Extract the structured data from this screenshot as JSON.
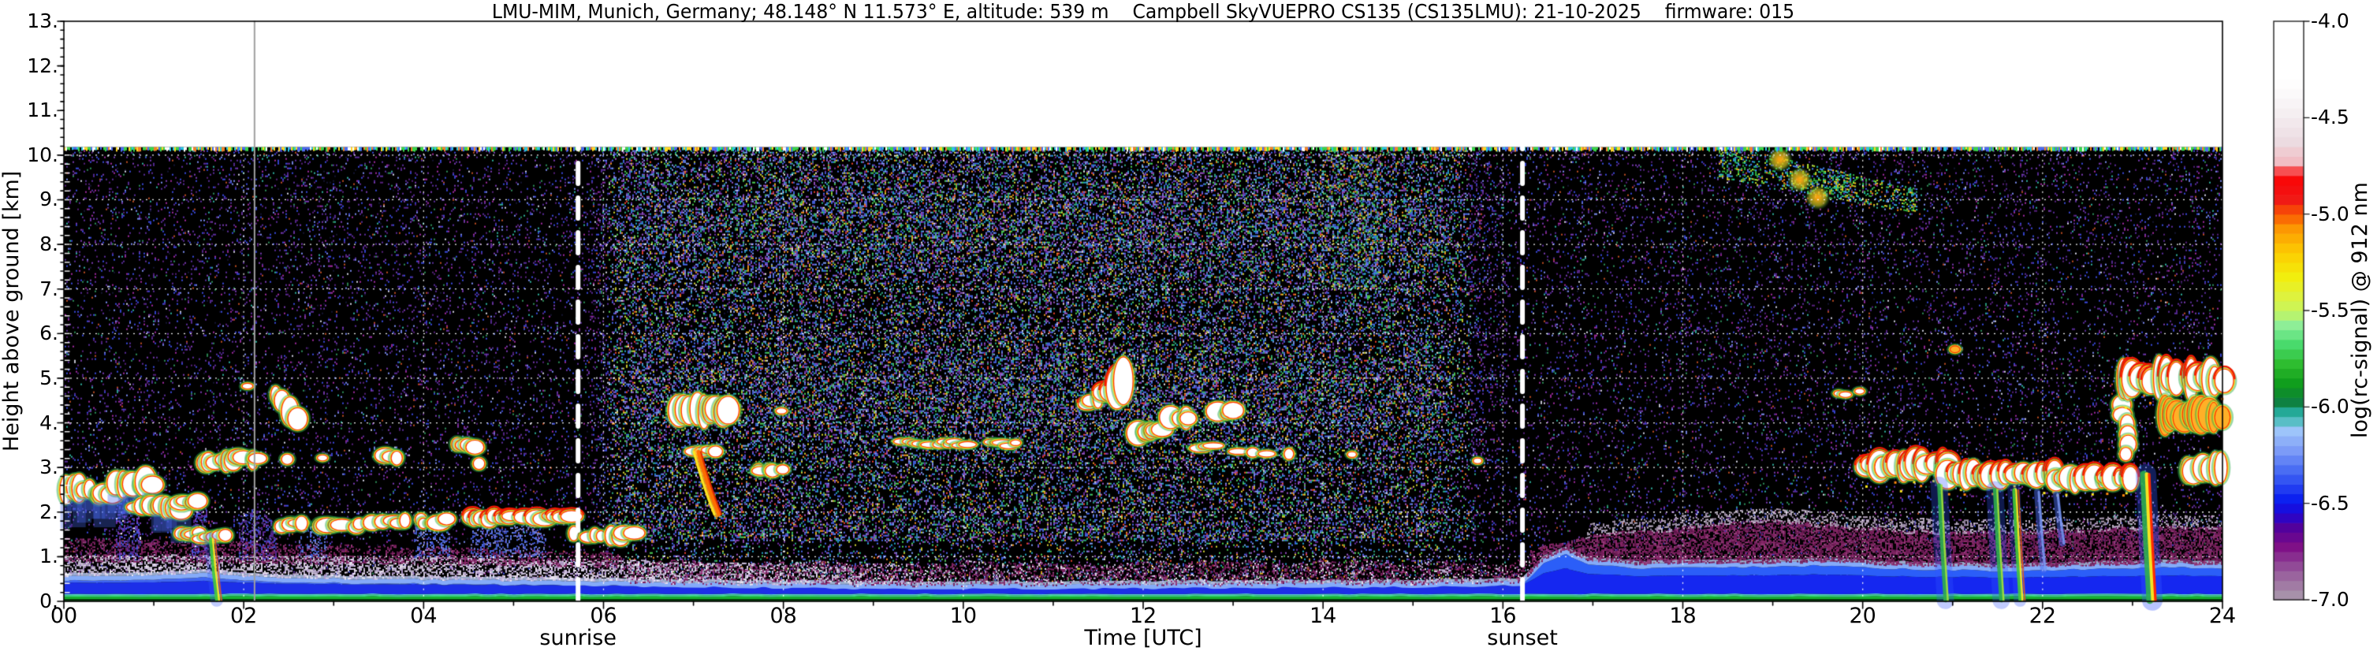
{
  "title": "LMU-MIM, Munich, Germany; 48.148° N 11.573° E, altitude: 539 m    Campbell SkyVUEPRO CS135 (CS135LMU): 21-10-2025    firmware: 015",
  "chart_data": {
    "type": "heatmap",
    "title": "LMU-MIM, Munich, Germany; 48.148° N 11.573° E, altitude: 539 m    Campbell SkyVUEPRO CS135 (CS135LMU): 21-10-2025    firmware: 015",
    "xlabel": "Time [UTC]",
    "ylabel": "Height above ground [km]",
    "colorbar_label": "log(rc-signal) @ 912 nm",
    "x_range_hours": [
      0,
      24
    ],
    "y_range_km": [
      0,
      13
    ],
    "data_top_km": 10.18,
    "value_range": [
      -7.0,
      -4.0
    ],
    "grid": {
      "style": "white-dashed",
      "x_step_hours": 2,
      "y_step_km": 1,
      "x_minor_hours": 1,
      "y_minor_km": 0.2
    },
    "x_ticks": {
      "values": [
        0,
        2,
        4,
        6,
        8,
        10,
        12,
        14,
        16,
        18,
        20,
        22,
        24
      ],
      "labels": [
        "00",
        "02",
        "04",
        "06",
        "08",
        "10",
        "12",
        "14",
        "16",
        "18",
        "20",
        "22",
        "24"
      ]
    },
    "y_ticks": {
      "values": [
        0,
        1,
        2,
        3,
        4,
        5,
        6,
        7,
        8,
        9,
        10,
        11,
        12,
        13
      ],
      "labels": [
        "0.",
        "1.",
        "2.",
        "3.",
        "4.",
        "5.",
        "6.",
        "7.",
        "8.",
        "9.",
        "10.",
        "11.",
        "12.",
        "13."
      ]
    },
    "colorbar_ticks": {
      "values": [
        -4.0,
        -4.5,
        -5.0,
        -5.5,
        -6.0,
        -6.5,
        -7.0
      ],
      "labels": [
        "-4.0",
        "-4.5",
        "-5.0",
        "-5.5",
        "-6.0",
        "-6.5",
        "-7.0"
      ]
    },
    "colormap_stops": [
      {
        "v": -7.0,
        "c": "#ab9dad"
      },
      {
        "v": -6.85,
        "c": "#96589b"
      },
      {
        "v": -6.72,
        "c": "#7e0d86"
      },
      {
        "v": -6.62,
        "c": "#50009d"
      },
      {
        "v": -6.55,
        "c": "#1c06d6"
      },
      {
        "v": -6.48,
        "c": "#0a1ef0"
      },
      {
        "v": -6.35,
        "c": "#3e62f2"
      },
      {
        "v": -6.22,
        "c": "#7e9df7"
      },
      {
        "v": -6.12,
        "c": "#9fc6fa"
      },
      {
        "v": -6.05,
        "c": "#32b9a9"
      },
      {
        "v": -6.01,
        "c": "#1ba08c"
      },
      {
        "v": -5.97,
        "c": "#0c7d37"
      },
      {
        "v": -5.88,
        "c": "#0f9c1c"
      },
      {
        "v": -5.78,
        "c": "#2dbb2d"
      },
      {
        "v": -5.68,
        "c": "#46d96a"
      },
      {
        "v": -5.58,
        "c": "#8aee9b"
      },
      {
        "v": -5.5,
        "c": "#c8f55e"
      },
      {
        "v": -5.42,
        "c": "#dff23c"
      },
      {
        "v": -5.32,
        "c": "#f2ee0c"
      },
      {
        "v": -5.2,
        "c": "#fccc02"
      },
      {
        "v": -5.08,
        "c": "#fc9b02"
      },
      {
        "v": -5.0,
        "c": "#f95703"
      },
      {
        "v": -4.92,
        "c": "#ef1616"
      },
      {
        "v": -4.8,
        "c": "#fb0404"
      },
      {
        "v": -4.74,
        "c": "#f2b8c0"
      },
      {
        "v": -4.62,
        "c": "#ecdce2"
      },
      {
        "v": -4.45,
        "c": "#f6f2f4"
      },
      {
        "v": -4.3,
        "c": "#ffffff"
      },
      {
        "v": -4.0,
        "c": "#ffffff"
      }
    ],
    "annotations": {
      "sunrise": {
        "label": "sunrise",
        "time_utc": 5.717
      },
      "sunset": {
        "label": "sunset",
        "time_utc": 16.217
      },
      "event_line": {
        "time_utc": 2.12,
        "color": "#a0a0a0"
      }
    },
    "boundary_layer": {
      "blue_top_km": [
        [
          0,
          0.44
        ],
        [
          0.8,
          0.46
        ],
        [
          1.55,
          0.52
        ],
        [
          1.8,
          0.46
        ],
        [
          2.5,
          0.4
        ],
        [
          4,
          0.37
        ],
        [
          5.5,
          0.34
        ],
        [
          7,
          0.3
        ],
        [
          9,
          0.26
        ],
        [
          11,
          0.26
        ],
        [
          13,
          0.28
        ],
        [
          15,
          0.3
        ],
        [
          16.2,
          0.33
        ],
        [
          16.45,
          0.85
        ],
        [
          16.7,
          1.03
        ],
        [
          16.95,
          0.8
        ],
        [
          17.5,
          0.72
        ],
        [
          18.5,
          0.74
        ],
        [
          19.5,
          0.78
        ],
        [
          20.5,
          0.7
        ],
        [
          21.5,
          0.66
        ],
        [
          22.5,
          0.7
        ],
        [
          23.5,
          0.74
        ],
        [
          24,
          0.72
        ]
      ],
      "lavender_haze_top_km": [
        [
          0,
          1.02
        ],
        [
          2,
          0.98
        ],
        [
          4,
          0.96
        ],
        [
          6,
          0.9
        ],
        [
          8,
          0.8
        ],
        [
          10,
          0.62
        ]
      ],
      "morning_maroon_top_km": [
        [
          0,
          1.38
        ],
        [
          1,
          1.32
        ],
        [
          2,
          1.3
        ],
        [
          3,
          1.22
        ],
        [
          4,
          1.18
        ],
        [
          5,
          1.12
        ],
        [
          6,
          1.05
        ]
      ],
      "evening_maroon_top_km": [
        [
          16.3,
          1.12
        ],
        [
          17,
          1.45
        ],
        [
          18,
          1.62
        ],
        [
          19,
          1.78
        ],
        [
          20,
          1.62
        ],
        [
          21,
          1.5
        ],
        [
          22,
          1.56
        ],
        [
          23,
          1.62
        ],
        [
          24,
          1.66
        ]
      ]
    },
    "clouds": [
      {
        "t": [
          0.03,
          0.3
        ],
        "h": [
          2.25,
          2.8
        ],
        "kind": "cumulus",
        "wash": 1
      },
      {
        "t": [
          0.33,
          0.55
        ],
        "h": [
          2.15,
          2.6
        ],
        "kind": "cumulus",
        "wash": 1
      },
      {
        "t": [
          0.58,
          0.98
        ],
        "h": [
          2.35,
          2.95
        ],
        "kind": "cumulus",
        "wash": 1
      },
      {
        "t": [
          0.8,
          1.0
        ],
        "h": [
          1.95,
          2.3
        ],
        "kind": "cumulus"
      },
      {
        "t": [
          1.02,
          1.28
        ],
        "h": [
          1.9,
          2.3
        ],
        "kind": "cumulus",
        "wash": 1
      },
      {
        "t": [
          1.3,
          1.5
        ],
        "h": [
          2.05,
          2.35
        ],
        "kind": "cumulus"
      },
      {
        "t": [
          1.33,
          1.52
        ],
        "h": [
          1.4,
          1.62
        ],
        "kind": "blob"
      },
      {
        "t": [
          1.52,
          1.8
        ],
        "h": [
          1.32,
          1.58
        ],
        "kind": "blob"
      },
      {
        "t": [
          1.57,
          1.82
        ],
        "h": [
          2.95,
          3.35
        ],
        "kind": "cumulus"
      },
      {
        "t": [
          1.86,
          2.16
        ],
        "h": [
          3.0,
          3.38
        ],
        "kind": "cumulus"
      },
      {
        "t": [
          2.02,
          2.1
        ],
        "h": [
          4.8,
          4.95
        ],
        "kind": "dot"
      },
      {
        "t": [
          2.38,
          2.58
        ],
        "h": [
          4.35,
          4.9
        ],
        "kind": "streak",
        "slope": -0.5
      },
      {
        "t": [
          2.47,
          2.6
        ],
        "h": [
          3.05,
          3.25
        ],
        "kind": "dot"
      },
      {
        "t": [
          2.86,
          2.95
        ],
        "h": [
          3.15,
          3.3
        ],
        "kind": "dot"
      },
      {
        "t": [
          2.45,
          3.45
        ],
        "h": [
          1.58,
          1.85
        ],
        "kind": "stratus",
        "gap": 0.35
      },
      {
        "t": [
          3.45,
          4.45
        ],
        "h": [
          1.65,
          1.95
        ],
        "kind": "stratus",
        "gap": 0.3
      },
      {
        "t": [
          4.45,
          5.62
        ],
        "h": [
          1.72,
          2.02
        ],
        "kind": "stratus",
        "gap": 0.15,
        "red": 1
      },
      {
        "t": [
          3.58,
          3.72
        ],
        "h": [
          3.05,
          3.45
        ],
        "kind": "blob"
      },
      {
        "t": [
          4.38,
          4.58
        ],
        "h": [
          3.35,
          3.62
        ],
        "kind": "blob"
      },
      {
        "t": [
          4.62,
          4.78
        ],
        "h": [
          2.95,
          3.18
        ],
        "kind": "dot"
      },
      {
        "t": [
          5.66,
          6.32
        ],
        "h": [
          1.3,
          1.68
        ],
        "kind": "stratus",
        "gap": 0.2
      },
      {
        "t": [
          6.12,
          6.34
        ],
        "h": [
          1.95,
          2.38
        ],
        "kind": "dots",
        "gap": 0.4
      },
      {
        "t": [
          6.82,
          7.38
        ],
        "h": [
          3.95,
          4.58
        ],
        "kind": "cumulus"
      },
      {
        "t": [
          7.02,
          7.22
        ],
        "h": [
          3.28,
          3.48
        ],
        "kind": "blob"
      },
      {
        "t": [
          7.58,
          7.97
        ],
        "h": [
          2.78,
          3.06
        ],
        "kind": "blobs",
        "gap": 0.25
      },
      {
        "t": [
          8.0,
          8.13
        ],
        "h": [
          4.2,
          4.36
        ],
        "kind": "dot"
      },
      {
        "t": [
          9.32,
          10.06
        ],
        "h": [
          3.42,
          3.66
        ],
        "kind": "line",
        "gap": 0.15
      },
      {
        "t": [
          10.31,
          10.56
        ],
        "h": [
          3.45,
          3.62
        ],
        "kind": "line"
      },
      {
        "t": [
          11.36,
          11.76
        ],
        "h": [
          4.1,
          4.78
        ],
        "kind": "comma",
        "slope": 0.45,
        "red": 1
      },
      {
        "t": [
          11.92,
          12.05
        ],
        "h": [
          3.52,
          4.02
        ],
        "kind": "blob"
      },
      {
        "t": [
          12.08,
          12.22
        ],
        "h": [
          3.55,
          4.05
        ],
        "kind": "blob"
      },
      {
        "t": [
          12.32,
          12.52
        ],
        "h": [
          3.85,
          4.32
        ],
        "kind": "blob"
      },
      {
        "t": [
          12.56,
          12.76
        ],
        "h": [
          3.3,
          3.62
        ],
        "kind": "dots",
        "gap": 0.3
      },
      {
        "t": [
          12.83,
          13.0
        ],
        "h": [
          4.05,
          4.42
        ],
        "kind": "blob"
      },
      {
        "t": [
          13.06,
          13.36
        ],
        "h": [
          3.18,
          3.52
        ],
        "kind": "dots",
        "gap": 0.45
      },
      {
        "t": [
          13.62,
          13.76
        ],
        "h": [
          3.22,
          3.42
        ],
        "kind": "dot"
      },
      {
        "t": [
          14.32,
          14.45
        ],
        "h": [
          3.2,
          3.36
        ],
        "kind": "dot"
      },
      {
        "t": [
          15.7,
          15.78
        ],
        "h": [
          3.04,
          3.16
        ],
        "kind": "dot"
      },
      {
        "t": [
          19.72,
          19.96
        ],
        "h": [
          4.56,
          4.8
        ],
        "kind": "dots",
        "gap": 0.5
      },
      {
        "t": [
          21.0,
          21.08
        ],
        "h": [
          5.6,
          5.76
        ],
        "kind": "dot",
        "orange": 1
      },
      {
        "t": [
          20.02,
          20.95
        ],
        "h": [
          2.75,
          3.35
        ],
        "kind": "stratocu",
        "red": 1
      },
      {
        "t": [
          20.95,
          22.15
        ],
        "h": [
          2.55,
          3.12
        ],
        "kind": "stratocu",
        "red": 1
      },
      {
        "t": [
          22.15,
          23.0
        ],
        "h": [
          2.52,
          3.0
        ],
        "kind": "stratocu",
        "red": 1
      },
      {
        "t": [
          22.78,
          23.1
        ],
        "h": [
          3.3,
          4.4
        ],
        "kind": "tower"
      },
      {
        "t": [
          22.88,
          24.0
        ],
        "h": [
          4.55,
          5.4
        ],
        "kind": "stratocu",
        "red": 1
      },
      {
        "t": [
          23.35,
          24.0
        ],
        "h": [
          3.72,
          4.58
        ],
        "kind": "band-orange"
      },
      {
        "t": [
          23.62,
          24.0
        ],
        "h": [
          2.62,
          3.3
        ],
        "kind": "cumulus"
      }
    ],
    "precipitation": [
      {
        "t": [
          1.6,
          1.66
        ],
        "h": [
          1.4,
          0.02
        ],
        "kind": "rain-yg"
      },
      {
        "t": [
          6.93,
          7.13
        ],
        "h": [
          3.35,
          1.95
        ],
        "kind": "virga-orange"
      },
      {
        "t": [
          20.78,
          20.92
        ],
        "h": [
          2.6,
          0.02
        ],
        "kind": "rain"
      },
      {
        "t": [
          21.42,
          21.52
        ],
        "h": [
          2.5,
          0.02
        ],
        "kind": "rain"
      },
      {
        "t": [
          21.62,
          21.74
        ],
        "h": [
          2.5,
          0.02
        ],
        "kind": "rain-yg"
      },
      {
        "t": [
          21.9,
          21.98
        ],
        "h": [
          2.45,
          0.7
        ],
        "kind": "virga"
      },
      {
        "t": [
          22.1,
          22.2
        ],
        "h": [
          2.4,
          1.3
        ],
        "kind": "virga"
      },
      {
        "t": [
          23.08,
          23.22
        ],
        "h": [
          2.85,
          0.02
        ],
        "kind": "rain-red"
      }
    ],
    "plumes": [
      {
        "t": [
          13.95,
          14.6
        ],
        "h": [
          7.0,
          10.15
        ],
        "kind": "noise-plume"
      },
      {
        "t": [
          18.4,
          20.6
        ],
        "h": [
          8.75,
          10.15
        ],
        "kind": "cirrus",
        "cores": [
          [
            19.08,
            9.9
          ],
          [
            19.3,
            9.45
          ],
          [
            19.5,
            9.05
          ]
        ]
      }
    ]
  }
}
